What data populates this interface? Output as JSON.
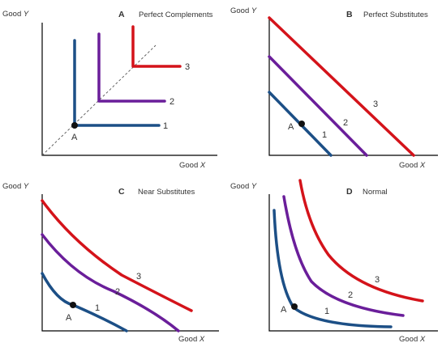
{
  "colors": {
    "curve1": "#1c4f86",
    "curve2": "#6a1e9a",
    "curve3": "#d4131a",
    "axis": "#000000",
    "text": "#333333"
  },
  "axis_label_prefix": "Good",
  "axis_y_var": "Y",
  "axis_x_var": "X",
  "point_label": "A",
  "curve_labels": [
    "1",
    "2",
    "3"
  ],
  "panels": [
    {
      "letter": "A",
      "title": "Perfect Complements"
    },
    {
      "letter": "B",
      "title": "Perfect Substitutes"
    },
    {
      "letter": "C",
      "title": "Near Substitutes"
    },
    {
      "letter": "D",
      "title": "Normal"
    }
  ]
}
